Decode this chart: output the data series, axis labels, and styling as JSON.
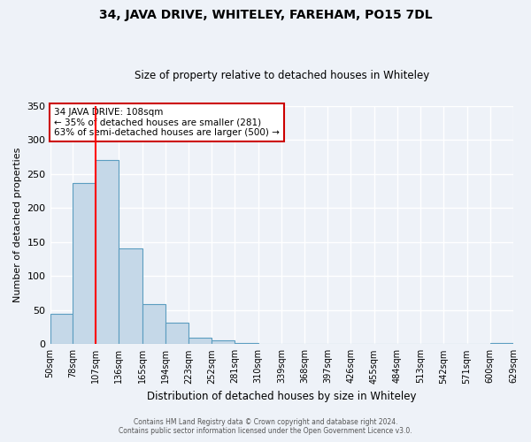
{
  "title": "34, JAVA DRIVE, WHITELEY, FAREHAM, PO15 7DL",
  "subtitle": "Size of property relative to detached houses in Whiteley",
  "xlabel": "Distribution of detached houses by size in Whiteley",
  "ylabel": "Number of detached properties",
  "bin_edges": [
    50,
    78,
    107,
    136,
    165,
    194,
    223,
    252,
    281,
    310,
    339,
    368,
    397,
    426,
    455,
    484,
    513,
    542,
    571,
    600,
    629
  ],
  "bar_heights": [
    45,
    236,
    270,
    141,
    59,
    31,
    10,
    5,
    2,
    0,
    0,
    0,
    0,
    0,
    0,
    0,
    0,
    0,
    0,
    2
  ],
  "bar_color": "#c5d8e8",
  "bar_edge_color": "#5b9dc0",
  "red_line_x": 107,
  "ylim": [
    0,
    350
  ],
  "yticks": [
    0,
    50,
    100,
    150,
    200,
    250,
    300,
    350
  ],
  "annotation_title": "34 JAVA DRIVE: 108sqm",
  "annotation_line1": "← 35% of detached houses are smaller (281)",
  "annotation_line2": "63% of semi-detached houses are larger (500) →",
  "annotation_box_color": "#ffffff",
  "annotation_box_edge": "#cc0000",
  "footer_line1": "Contains HM Land Registry data © Crown copyright and database right 2024.",
  "footer_line2": "Contains public sector information licensed under the Open Government Licence v3.0.",
  "background_color": "#eef2f8",
  "grid_color": "#ffffff",
  "tick_labels": [
    "50sqm",
    "78sqm",
    "107sqm",
    "136sqm",
    "165sqm",
    "194sqm",
    "223sqm",
    "252sqm",
    "281sqm",
    "310sqm",
    "339sqm",
    "368sqm",
    "397sqm",
    "426sqm",
    "455sqm",
    "484sqm",
    "513sqm",
    "542sqm",
    "571sqm",
    "600sqm",
    "629sqm"
  ]
}
